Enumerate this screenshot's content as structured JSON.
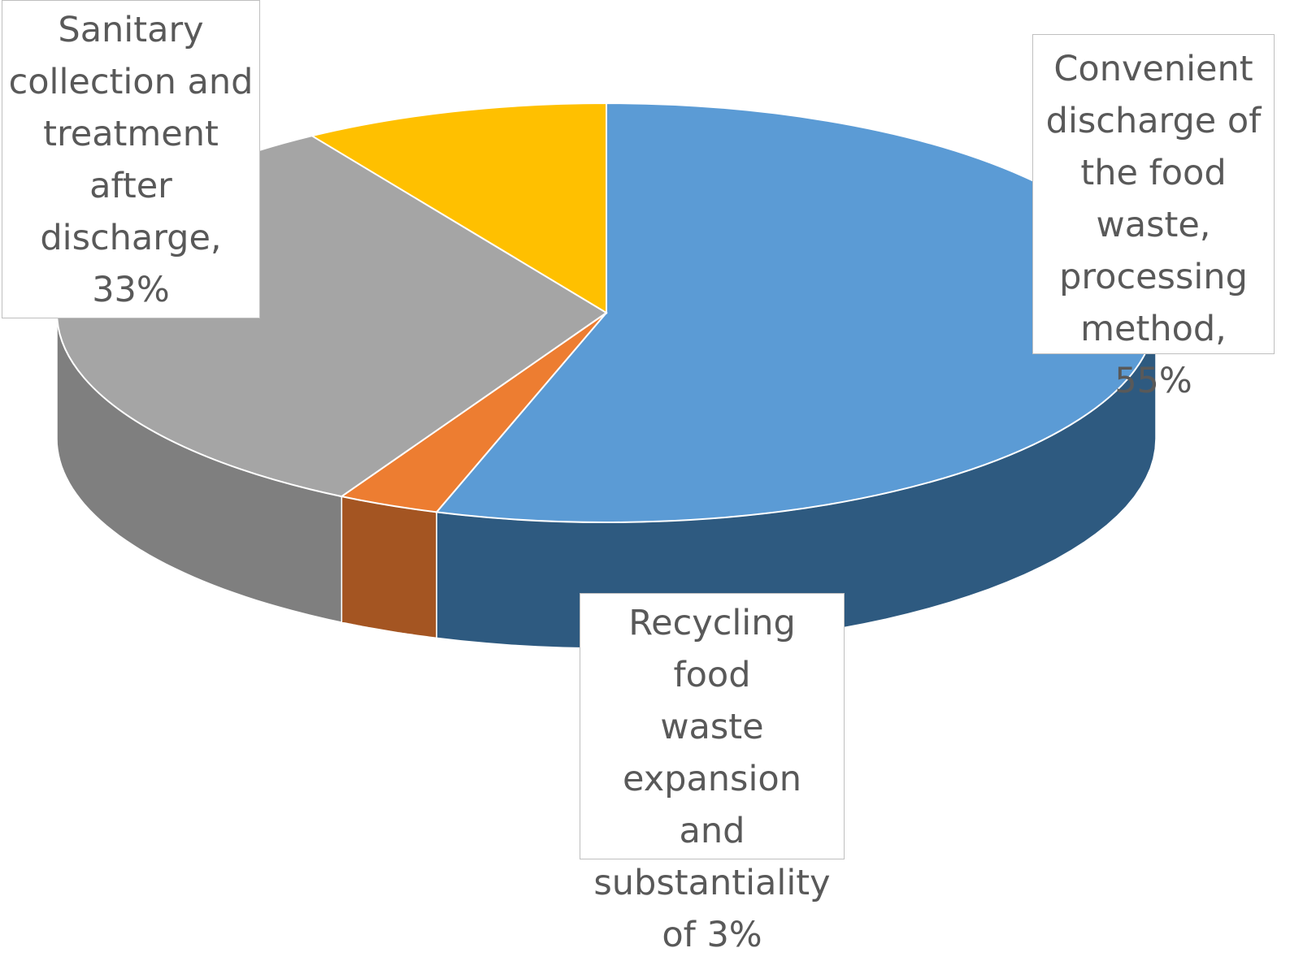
{
  "chart_data": {
    "type": "pie",
    "title": "",
    "legend": "none",
    "slices": [
      {
        "name": "Convenient discharge of the food waste, processing method",
        "value": 55,
        "color": "#5B9BD5",
        "sideColor": "#2E5A80",
        "label": "Convenient\ndischarge of\nthe food\nwaste,\nprocessing\nmethod, 55%"
      },
      {
        "name": "Recycling food waste expansion and substantiality",
        "value": 3,
        "color": "#ED7D31",
        "sideColor": "#A45522",
        "label": "Recycling food\nwaste\nexpansion and\nsubstantiality\nof 3%"
      },
      {
        "name": "Sanitary collection and treatment after discharge",
        "value": 33,
        "color": "#A5A5A5",
        "sideColor": "#7F7F7F",
        "label": "Sanitary\ncollection and\ntreatment\nafter\ndischarge,\n33%"
      },
      {
        "name": "",
        "value": 9,
        "color": "#FFC000",
        "sideColor": "#B38600",
        "label": ""
      }
    ]
  }
}
